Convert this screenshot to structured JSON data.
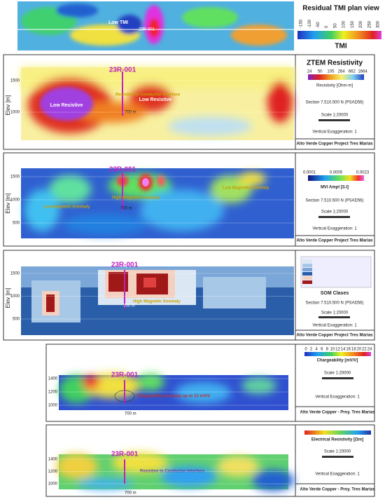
{
  "tmi_map": {
    "title": "Residual TMI plan view",
    "label": "TMI",
    "annotations": [
      "Low TMI",
      "23R-001"
    ],
    "scale_ticks": [
      -150,
      -100,
      -50,
      0,
      50,
      100,
      150,
      200,
      250,
      300
    ]
  },
  "ztem": {
    "title": "ZTEM Resistivity",
    "scale_ticks": [
      24,
      50,
      105,
      264,
      662,
      1664
    ],
    "scale_label": "Resistivity [Ohm-m]",
    "section": "Section 7.510.500 N (PSAD56)",
    "scale": "Scale 1:20000",
    "vertical": "Vertical Exaggeration: 1",
    "footer": "Alto Verde Copper Project Tres Marias",
    "y_label": "Elev [m]",
    "y_ticks": [
      1500,
      1000
    ],
    "drill": "23R-001",
    "distance": "700 m",
    "annotations": [
      "Low Resistive",
      "Resistive to Conductor Interface",
      "Low Resistive"
    ]
  },
  "mvi": {
    "scale_ticks": [
      0.0001,
      0.0005,
      0.0023
    ],
    "scale_label": "MVI Ampl [S.I]",
    "section": "Section 7.510.500 N (PSAD56)",
    "scale": "Scale 1:20000",
    "vertical": "Vertical Exaggeration: 1",
    "footer": "Alto Verde Copper Project Tres Marias",
    "y_label": "Elev [m]",
    "y_ticks": [
      1500,
      1000,
      500
    ],
    "drill": "23R-001",
    "distance": "700 m",
    "annotations": [
      "Low Magnetic Anomaly",
      "High Magnetic Anomaly",
      "Low Magnetic Anomaly"
    ]
  },
  "som": {
    "scale_label": "SOM Clases",
    "section": "Section 7.510.500 N (PSAD56)",
    "scale": "Scale 1:20000",
    "vertical": "Vertical Exaggeration: 1",
    "footer": "Alto Verde Copper Project Tres Marias",
    "y_label": "Elev [m]",
    "y_ticks": [
      1500,
      1000,
      500
    ],
    "drill": "23R-001",
    "distance": "700 m",
    "annotations": [
      "High Magnetic Anomaly"
    ]
  },
  "chargeability": {
    "scale_ticks": [
      0,
      2,
      4,
      6,
      8,
      10,
      12,
      14,
      16,
      18,
      20,
      22,
      24
    ],
    "scale_label": "Chargeability [mV/V]",
    "scale": "Scale 1:20000",
    "vertical": "Vertical Exaggeration: 1",
    "footer": "Alto Verde Copper - Proy. Tres Marias",
    "y_ticks": [
      1400,
      1200,
      1000
    ],
    "drill": "23R-001",
    "distance": "700 m",
    "annotations": [
      "Chargeability anomaly up to 13 mV/V"
    ]
  },
  "resistivity": {
    "scale_label": "Electrical Resistivity [Ωm]",
    "scale": "Scale 1:20000",
    "vertical": "Vertical Exaggeration: 1",
    "footer": "Alto Verde Copper - Proy. Tres Marias",
    "y_ticks": [
      1400,
      1200,
      1000
    ],
    "drill": "23R-001",
    "distance": "700 m",
    "annotations": [
      "Resistive to Conductor Interface"
    ]
  }
}
